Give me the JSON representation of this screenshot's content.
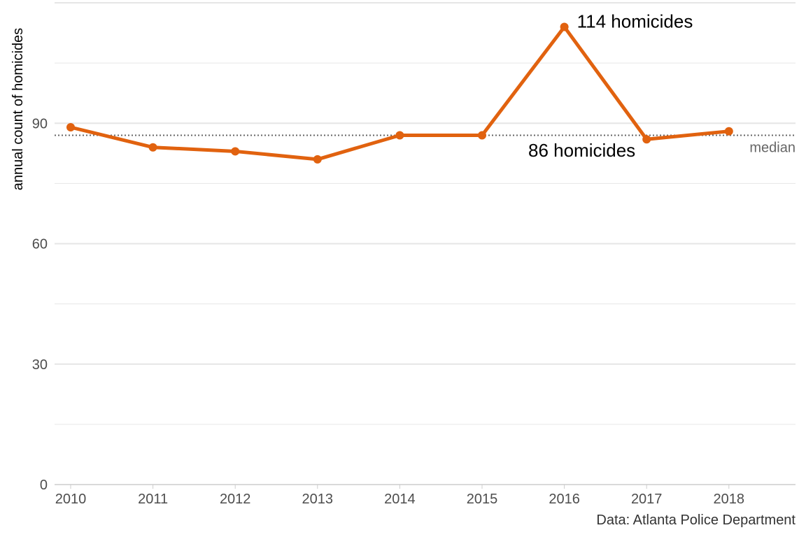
{
  "chart_data": {
    "type": "line",
    "x": [
      "2010",
      "2011",
      "2012",
      "2013",
      "2014",
      "2015",
      "2016",
      "2017",
      "2018"
    ],
    "series": [
      {
        "values": [
          89,
          84,
          83,
          81,
          87,
          87,
          114,
          86,
          88
        ]
      }
    ],
    "ylabel": "annual count of homicides",
    "xlabel": "",
    "ylim": [
      0,
      120
    ],
    "yticks": [
      0,
      30,
      60,
      90
    ],
    "grid": true,
    "median": {
      "value": 87,
      "label": "median"
    },
    "annotations": [
      {
        "text": "114 homicides",
        "x": "2016",
        "y": 114
      },
      {
        "text": "86 homicides",
        "x": "2017",
        "y": 86
      }
    ],
    "caption": "Data: Atlanta Police Department",
    "colors": {
      "line": "#E1620F",
      "median": "#666666",
      "grid": "#e6e6e6"
    }
  }
}
